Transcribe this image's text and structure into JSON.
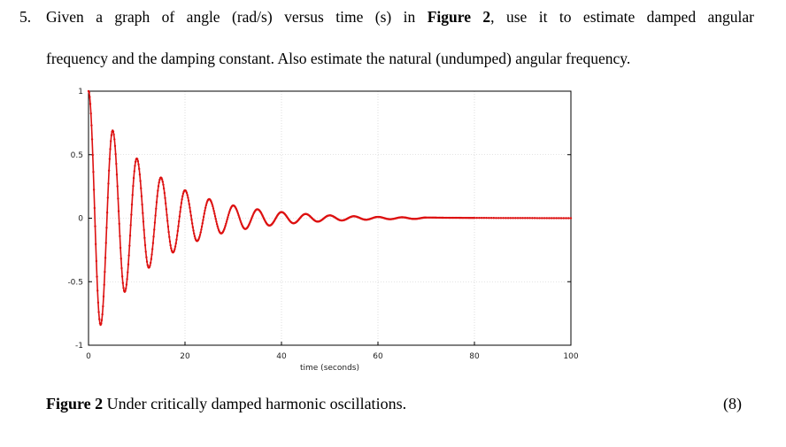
{
  "question": {
    "number": "5.",
    "line1_before": "Given a graph of angle (rad/s) versus time (s) in ",
    "line1_bold": "Figure 2",
    "line1_after": ", use it to estimate damped angular",
    "line2": "frequency and the damping constant. Also estimate the natural (undumped) angular frequency."
  },
  "caption": {
    "label": "Figure 2",
    "text": " Under critically damped harmonic oscillations."
  },
  "marks": "(8)",
  "chart_data": {
    "type": "line",
    "xlabel": "time (seconds)",
    "ylabel": "",
    "xlim": [
      0,
      100
    ],
    "ylim": [
      -1,
      1
    ],
    "x_ticks": [
      "0",
      "20",
      "40",
      "60",
      "80",
      "100"
    ],
    "y_ticks": [
      "1",
      "0.5",
      "0",
      "-0.5",
      "-1"
    ],
    "grid": true,
    "line_color": "#dd1111",
    "series": [
      {
        "name": "",
        "points": [
          [
            0,
            1.0
          ],
          [
            2.5,
            -0.84
          ],
          [
            5.0,
            0.69
          ],
          [
            7.5,
            -0.58
          ],
          [
            10.0,
            0.47
          ],
          [
            12.5,
            -0.39
          ],
          [
            15.0,
            0.32
          ],
          [
            17.5,
            -0.27
          ],
          [
            20.0,
            0.22
          ],
          [
            22.5,
            -0.18
          ],
          [
            25.0,
            0.15
          ],
          [
            27.5,
            -0.12
          ],
          [
            30.0,
            0.1
          ],
          [
            32.5,
            -0.085
          ],
          [
            35.0,
            0.07
          ],
          [
            37.5,
            -0.058
          ],
          [
            40.0,
            0.048
          ],
          [
            42.5,
            -0.04
          ],
          [
            45.0,
            0.033
          ],
          [
            47.5,
            -0.027
          ],
          [
            50.0,
            0.022
          ],
          [
            52.5,
            -0.018
          ],
          [
            55.0,
            0.015
          ],
          [
            57.5,
            -0.012
          ],
          [
            60.0,
            0.01
          ],
          [
            62.5,
            -0.008
          ],
          [
            65.0,
            0.007
          ],
          [
            67.5,
            -0.006
          ],
          [
            70.0,
            0.005
          ],
          [
            75.0,
            0.003
          ],
          [
            80.0,
            0.002
          ],
          [
            90.0,
            0.001
          ],
          [
            100.0,
            0.0
          ]
        ]
      }
    ]
  }
}
